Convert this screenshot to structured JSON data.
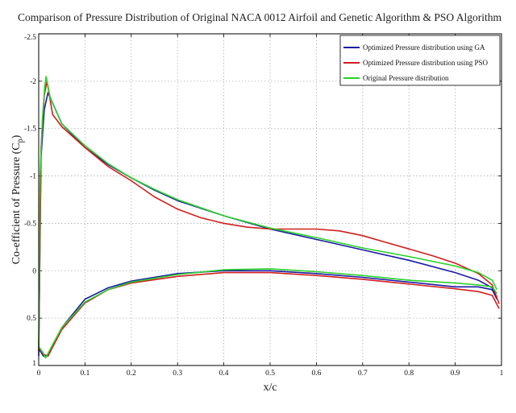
{
  "chart_data": {
    "type": "line",
    "title": "Comparison of Pressure Distribution of Original NACA 0012 Airfoil and Genetic Algorithm & PSO Algorithm",
    "xlabel": "x/c",
    "ylabel": "Co-efficient of Pressure (C",
    "ylabel_sub": "p",
    "ylabel_close": ")",
    "xlim": [
      0,
      1
    ],
    "ylim": [
      -2.5,
      1
    ],
    "y_reversed": true,
    "grid": true,
    "legend_position": "top-right",
    "x_ticks": [
      0,
      0.1,
      0.2,
      0.3,
      0.4,
      0.5,
      0.6,
      0.7,
      0.8,
      0.9,
      1
    ],
    "x_tick_labels": [
      "0",
      "0.1",
      "0.2",
      "0.3",
      "0.4",
      "0.5",
      "0.6",
      "0.7",
      "0.8",
      "0.9",
      "1"
    ],
    "y_ticks": [
      -2.5,
      -2,
      -1.5,
      -1,
      -0.5,
      0,
      0.5,
      1
    ],
    "y_tick_labels": [
      "-2.5",
      "-2",
      "-1.5",
      "-1",
      "-0.5",
      "0",
      "0.5",
      "1"
    ],
    "series": [
      {
        "name": "Optimized Pressure distribution using GA",
        "color": "#1a1aa6",
        "upper": [
          [
            0.0,
            0.9
          ],
          [
            0.005,
            -1.2
          ],
          [
            0.012,
            -1.7
          ],
          [
            0.02,
            -1.88
          ],
          [
            0.05,
            -1.55
          ],
          [
            0.1,
            -1.3
          ],
          [
            0.15,
            -1.12
          ],
          [
            0.2,
            -0.98
          ],
          [
            0.25,
            -0.85
          ],
          [
            0.3,
            -0.74
          ],
          [
            0.4,
            -0.58
          ],
          [
            0.5,
            -0.44
          ],
          [
            0.6,
            -0.33
          ],
          [
            0.7,
            -0.22
          ],
          [
            0.8,
            -0.11
          ],
          [
            0.9,
            0.02
          ],
          [
            0.95,
            0.1
          ],
          [
            0.98,
            0.18
          ],
          [
            0.99,
            0.28
          ]
        ],
        "lower": [
          [
            0.0,
            0.82
          ],
          [
            0.01,
            0.9
          ],
          [
            0.02,
            0.9
          ],
          [
            0.05,
            0.6
          ],
          [
            0.1,
            0.3
          ],
          [
            0.15,
            0.18
          ],
          [
            0.2,
            0.11
          ],
          [
            0.3,
            0.03
          ],
          [
            0.4,
            0.0
          ],
          [
            0.5,
            0.0
          ],
          [
            0.6,
            0.03
          ],
          [
            0.7,
            0.07
          ],
          [
            0.8,
            0.12
          ],
          [
            0.9,
            0.17
          ],
          [
            0.95,
            0.17
          ],
          [
            0.98,
            0.2
          ],
          [
            0.99,
            0.3
          ]
        ]
      },
      {
        "name": "Optimized Pressure distribution using PSO",
        "color": "#d11e1e",
        "upper": [
          [
            0.0,
            0.85
          ],
          [
            0.005,
            -1.3
          ],
          [
            0.012,
            -1.85
          ],
          [
            0.018,
            -2.0
          ],
          [
            0.03,
            -1.65
          ],
          [
            0.05,
            -1.52
          ],
          [
            0.1,
            -1.3
          ],
          [
            0.15,
            -1.1
          ],
          [
            0.2,
            -0.95
          ],
          [
            0.25,
            -0.78
          ],
          [
            0.3,
            -0.65
          ],
          [
            0.35,
            -0.56
          ],
          [
            0.4,
            -0.5
          ],
          [
            0.45,
            -0.46
          ],
          [
            0.5,
            -0.44
          ],
          [
            0.55,
            -0.44
          ],
          [
            0.6,
            -0.44
          ],
          [
            0.65,
            -0.42
          ],
          [
            0.7,
            -0.37
          ],
          [
            0.75,
            -0.3
          ],
          [
            0.8,
            -0.23
          ],
          [
            0.85,
            -0.16
          ],
          [
            0.9,
            -0.08
          ],
          [
            0.95,
            0.03
          ],
          [
            0.98,
            0.15
          ],
          [
            0.995,
            0.35
          ]
        ],
        "lower": [
          [
            0.0,
            0.8
          ],
          [
            0.01,
            0.88
          ],
          [
            0.02,
            0.9
          ],
          [
            0.05,
            0.62
          ],
          [
            0.1,
            0.34
          ],
          [
            0.15,
            0.2
          ],
          [
            0.2,
            0.13
          ],
          [
            0.3,
            0.06
          ],
          [
            0.4,
            0.02
          ],
          [
            0.5,
            0.02
          ],
          [
            0.6,
            0.05
          ],
          [
            0.7,
            0.09
          ],
          [
            0.8,
            0.14
          ],
          [
            0.9,
            0.19
          ],
          [
            0.95,
            0.22
          ],
          [
            0.98,
            0.26
          ],
          [
            0.995,
            0.4
          ]
        ]
      },
      {
        "name": "Original Pressure distribution",
        "color": "#2ad12a",
        "upper": [
          [
            0.0,
            0.8
          ],
          [
            0.003,
            -1.0
          ],
          [
            0.008,
            -1.6
          ],
          [
            0.013,
            -1.95
          ],
          [
            0.016,
            -2.05
          ],
          [
            0.025,
            -1.82
          ],
          [
            0.05,
            -1.55
          ],
          [
            0.1,
            -1.32
          ],
          [
            0.15,
            -1.13
          ],
          [
            0.2,
            -0.98
          ],
          [
            0.25,
            -0.86
          ],
          [
            0.3,
            -0.75
          ],
          [
            0.4,
            -0.58
          ],
          [
            0.5,
            -0.45
          ],
          [
            0.6,
            -0.35
          ],
          [
            0.7,
            -0.24
          ],
          [
            0.8,
            -0.15
          ],
          [
            0.9,
            -0.05
          ],
          [
            0.95,
            0.02
          ],
          [
            0.98,
            0.1
          ],
          [
            0.99,
            0.2
          ]
        ],
        "lower": [
          [
            0.0,
            0.8
          ],
          [
            0.01,
            0.87
          ],
          [
            0.015,
            0.92
          ],
          [
            0.03,
            0.78
          ],
          [
            0.05,
            0.6
          ],
          [
            0.1,
            0.33
          ],
          [
            0.15,
            0.2
          ],
          [
            0.2,
            0.12
          ],
          [
            0.3,
            0.04
          ],
          [
            0.4,
            -0.01
          ],
          [
            0.5,
            -0.02
          ],
          [
            0.6,
            0.01
          ],
          [
            0.7,
            0.05
          ],
          [
            0.8,
            0.1
          ],
          [
            0.9,
            0.13
          ],
          [
            0.95,
            0.15
          ],
          [
            0.98,
            0.17
          ],
          [
            0.99,
            0.24
          ]
        ]
      }
    ]
  }
}
